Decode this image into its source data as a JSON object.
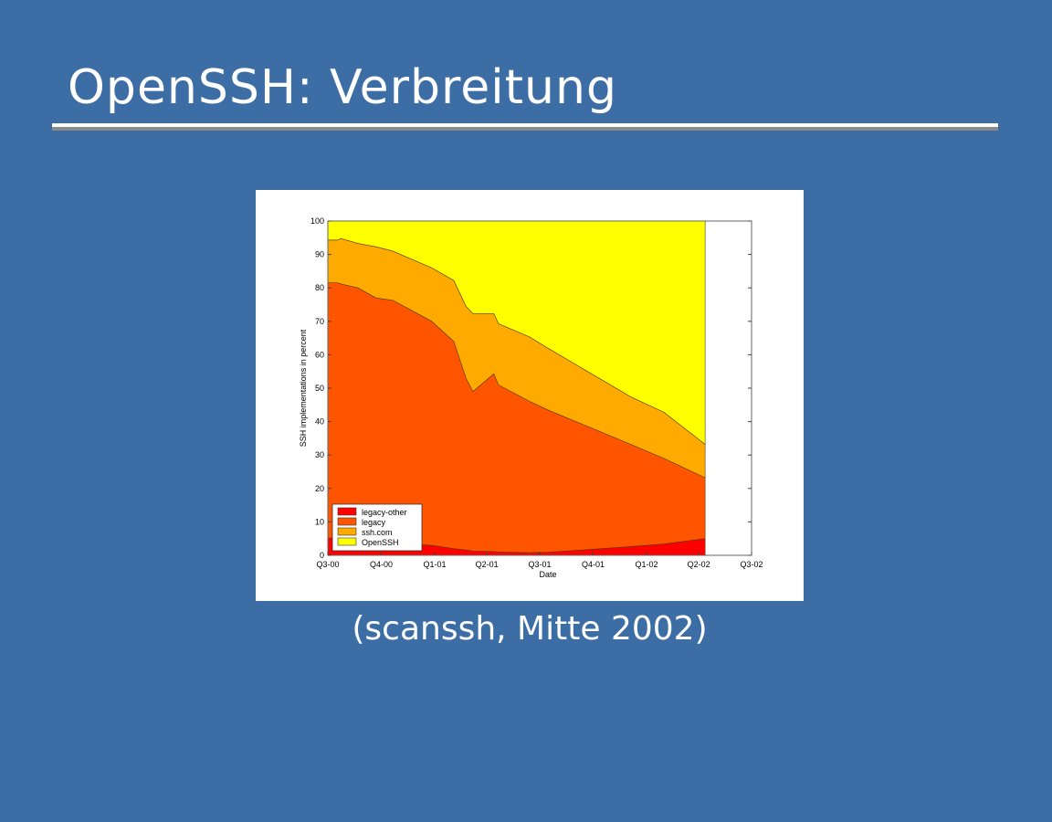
{
  "slide": {
    "title": "OpenSSH: Verbreitung",
    "caption": "(scanssh, Mitte 2002)"
  },
  "chart_data": {
    "type": "area",
    "stacked": true,
    "title": "",
    "xlabel": "Date",
    "ylabel": "SSH implementations in percent",
    "ylim": [
      0,
      100
    ],
    "yticks": [
      "0",
      "10",
      "20",
      "30",
      "40",
      "50",
      "60",
      "70",
      "80",
      "90",
      "100"
    ],
    "xticks": [
      {
        "label": "Q3-00",
        "date": "2000-07-01"
      },
      {
        "label": "Q4-00",
        "date": "2000-10-01"
      },
      {
        "label": "Q1-01",
        "date": "2001-01-01"
      },
      {
        "label": "Q2-01",
        "date": "2001-04-01"
      },
      {
        "label": "Q3-01",
        "date": "2001-07-01"
      },
      {
        "label": "Q4-01",
        "date": "2001-10-01"
      },
      {
        "label": "Q1-02",
        "date": "2002-01-01"
      },
      {
        "label": "Q2-02",
        "date": "2002-04-01"
      },
      {
        "label": "Q3-02",
        "date": "2002-07-01"
      }
    ],
    "grid": false,
    "legend_position": "bottom-left",
    "x": [
      "2000-07-01",
      "2000-07-18",
      "2000-07-23",
      "2000-08-22",
      "2000-09-22",
      "2000-10-21",
      "2000-12-27",
      "2001-02-03",
      "2001-02-24",
      "2001-03-08",
      "2001-04-13",
      "2001-04-21",
      "2001-06-14",
      "2001-07-15",
      "2001-12-05",
      "2002-01-31",
      "2002-04-12"
    ],
    "series": [
      {
        "name": "legacy-other",
        "color": "#ff0000",
        "values": [
          5.2,
          5.0,
          4.9,
          4.5,
          4.0,
          3.7,
          3.0,
          2.0,
          1.6,
          1.3,
          1.1,
          1.0,
          0.8,
          0.9,
          2.6,
          3.4,
          5.0
        ]
      },
      {
        "name": "legacy",
        "color": "#ff5500",
        "values": [
          76.3,
          76.5,
          76.3,
          75.5,
          73.0,
          72.6,
          67.0,
          62.0,
          51.4,
          47.7,
          53.2,
          50.0,
          45.2,
          42.6,
          30.6,
          25.6,
          18.2
        ]
      },
      {
        "name": "ssh.com",
        "color": "#ffaa00",
        "values": [
          12.8,
          12.8,
          13.6,
          13.3,
          15.3,
          14.7,
          16.0,
          18.2,
          21.5,
          23.3,
          18.0,
          18.3,
          19.3,
          18.5,
          14.2,
          13.8,
          10.0
        ]
      },
      {
        "name": "OpenSSH",
        "color": "#ffff00",
        "values": [
          5.7,
          5.7,
          5.2,
          6.7,
          7.7,
          9.0,
          14.0,
          17.8,
          25.5,
          27.7,
          27.7,
          30.7,
          34.7,
          38.0,
          52.6,
          57.2,
          66.8
        ]
      }
    ]
  }
}
